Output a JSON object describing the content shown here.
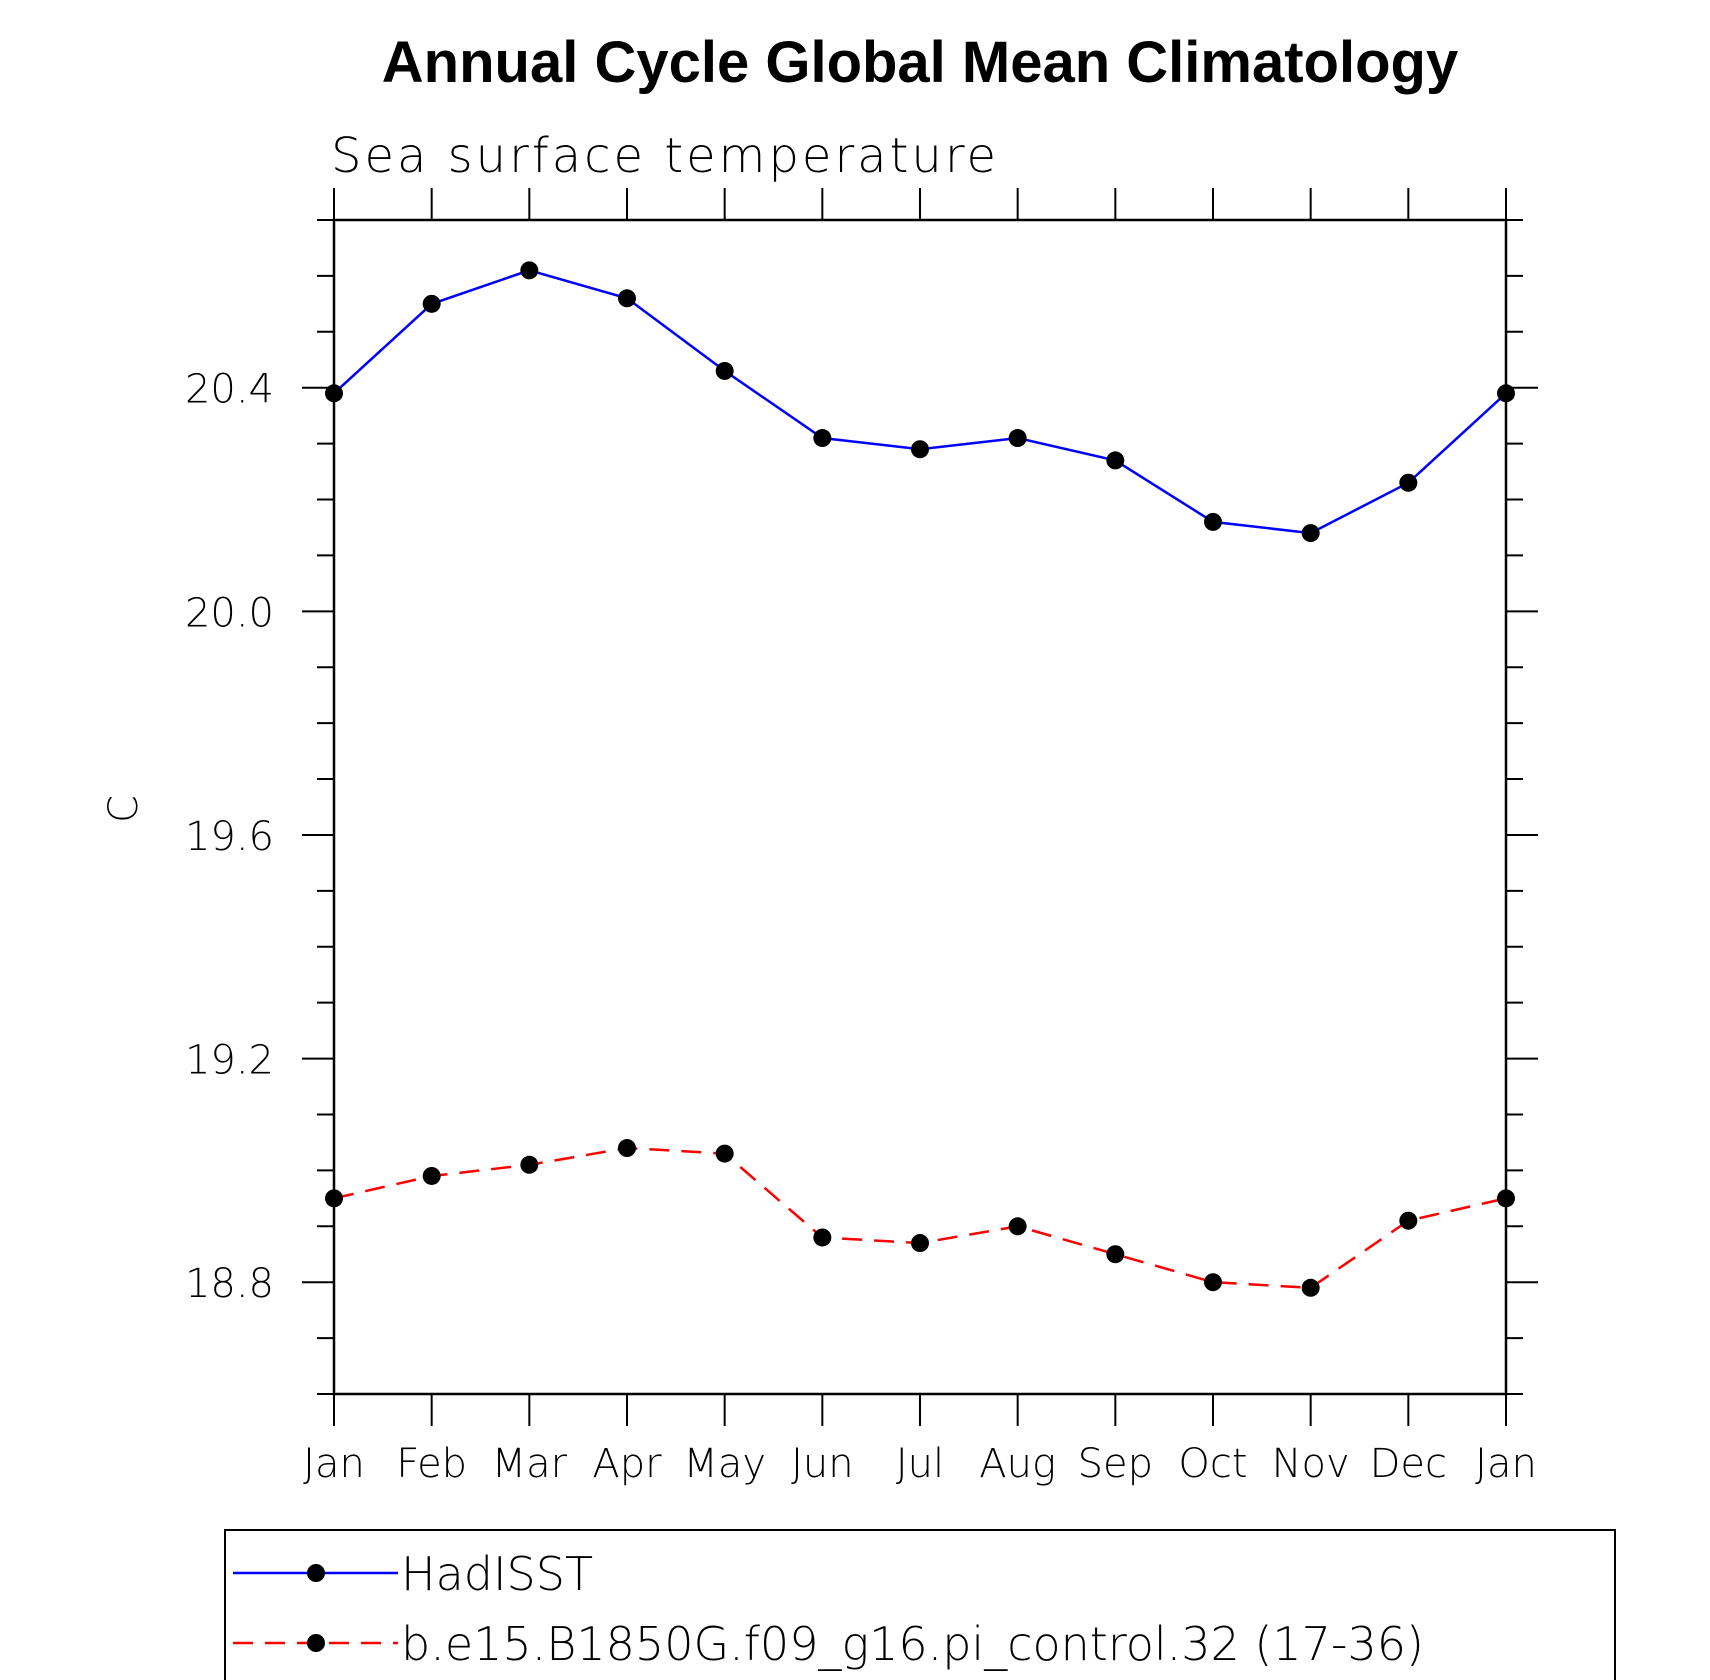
{
  "chart_data": {
    "type": "line",
    "title": "Annual Cycle Global Mean Climatology",
    "subtitle": "Sea surface temperature",
    "xlabel": "",
    "ylabel": "C",
    "categories": [
      "Jan",
      "Feb",
      "Mar",
      "Apr",
      "May",
      "Jun",
      "Jul",
      "Aug",
      "Sep",
      "Oct",
      "Nov",
      "Dec",
      "Jan"
    ],
    "ylim": [
      18.6,
      20.7
    ],
    "yticks": [
      18.8,
      19.2,
      19.6,
      20.0,
      20.4
    ],
    "ytick_labels": [
      "18.8",
      "19.2",
      "19.6",
      "20.0",
      "20.4"
    ],
    "grid": false,
    "legend_position": "bottom",
    "series": [
      {
        "name": "HadISST",
        "color": "#0000ff",
        "line_style": "solid",
        "marker": "filled-circle",
        "values": [
          20.39,
          20.55,
          20.61,
          20.56,
          20.43,
          20.31,
          20.29,
          20.31,
          20.27,
          20.16,
          20.14,
          20.23,
          20.39
        ]
      },
      {
        "name": "b.e15.B1850G.f09_g16.pi_control.32 (17-36)",
        "color": "#ff0000",
        "line_style": "dashed",
        "marker": "filled-circle",
        "values": [
          18.95,
          18.99,
          19.01,
          19.04,
          19.03,
          18.88,
          18.87,
          18.9,
          18.85,
          18.8,
          18.79,
          18.91,
          18.95
        ]
      }
    ]
  }
}
